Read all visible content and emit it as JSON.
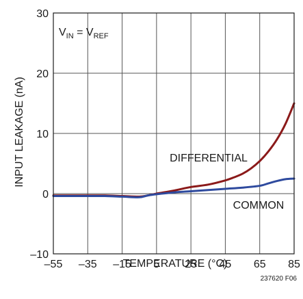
{
  "chart_data": {
    "type": "line",
    "title": "",
    "xlabel": "TEMPERATURE (°C)",
    "ylabel": "INPUT LEAKAGE (nA)",
    "xlim": [
      -55,
      85
    ],
    "ylim": [
      -10,
      30
    ],
    "x_ticks": [
      "–55",
      "–35",
      "–15",
      "5",
      "25",
      "45",
      "65",
      "85"
    ],
    "y_ticks": [
      "30",
      "20",
      "10",
      "0",
      "–10"
    ],
    "x_tick_values": [
      -55,
      -35,
      -15,
      5,
      25,
      45,
      65,
      85
    ],
    "y_tick_values": [
      30,
      20,
      10,
      0,
      -10
    ],
    "grid": true,
    "condition": {
      "main1": "V",
      "sub1": "IN",
      "eq": " = V",
      "sub2": "REF"
    },
    "figure_id": "237620 F06",
    "series": [
      {
        "name": "DIFFERENTIAL",
        "color": "#8b1a1a",
        "x": [
          -55,
          -45,
          -35,
          -25,
          -15,
          -5,
          0,
          5,
          15,
          25,
          35,
          45,
          50,
          55,
          60,
          65,
          70,
          75,
          80,
          85
        ],
        "y": [
          -0.3,
          -0.3,
          -0.3,
          -0.3,
          -0.4,
          -0.5,
          -0.3,
          0,
          0.5,
          1.1,
          1.5,
          2.2,
          2.7,
          3.3,
          4.2,
          5.4,
          7.0,
          9.0,
          11.6,
          15.0
        ]
      },
      {
        "name": "COMMON",
        "color": "#2e4a9e",
        "x": [
          -55,
          -45,
          -35,
          -25,
          -15,
          -5,
          0,
          5,
          15,
          25,
          35,
          45,
          55,
          65,
          70,
          75,
          80,
          85
        ],
        "y": [
          -0.4,
          -0.4,
          -0.4,
          -0.4,
          -0.5,
          -0.6,
          -0.3,
          -0.1,
          0.2,
          0.4,
          0.6,
          0.8,
          1.0,
          1.3,
          1.7,
          2.1,
          2.4,
          2.5
        ]
      }
    ]
  }
}
